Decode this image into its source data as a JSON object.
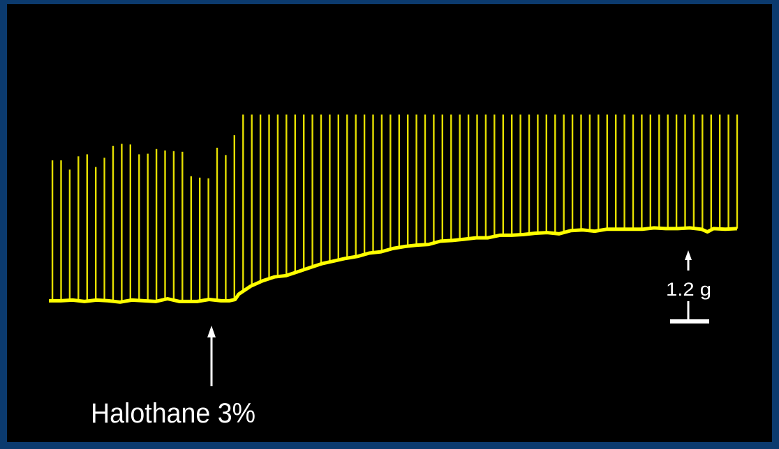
{
  "colors": {
    "border": "#0b3a6e",
    "background": "#000000",
    "trace": "#e6e000",
    "baseline": "#ffff00",
    "annotation": "#ffffff"
  },
  "annotations": {
    "drug_label": "Halothane 3%",
    "scale_label": "1.2 g"
  },
  "chart_data": {
    "type": "line",
    "title": "",
    "xlabel": "",
    "ylabel": "",
    "grid": false,
    "legend": "none",
    "drug_application_index": 16,
    "peaks": [
      0.0,
      0.0,
      -0.14,
      0.06,
      0.09,
      -0.1,
      0.04,
      0.22,
      0.25,
      0.24,
      0.09,
      0.1,
      0.17,
      0.15,
      0.14,
      0.13,
      -0.24,
      -0.26,
      -0.27,
      0.19,
      0.08,
      0.38,
      0.69,
      0.69,
      0.69,
      0.69,
      0.69,
      0.69,
      0.69,
      0.69,
      0.69,
      0.69,
      0.69,
      0.69,
      0.69,
      0.69,
      0.69,
      0.69,
      0.69,
      0.69,
      0.69,
      0.69,
      0.69,
      0.69,
      0.69,
      0.69,
      0.69,
      0.69,
      0.69,
      0.69,
      0.69,
      0.69,
      0.69,
      0.69,
      0.69,
      0.69,
      0.69,
      0.69,
      0.69,
      0.69,
      0.69,
      0.69,
      0.69,
      0.69,
      0.69,
      0.69,
      0.69,
      0.69,
      0.69,
      0.69,
      0.69,
      0.69,
      0.69,
      0.69,
      0.69,
      0.69,
      0.69,
      0.69,
      0.69,
      0.69
    ],
    "baseline": [
      [
        0,
        -2.12
      ],
      [
        0.1,
        -2.12
      ],
      [
        0.2,
        -2.11
      ],
      [
        0.3,
        -2.13
      ],
      [
        0.4,
        -2.11
      ],
      [
        0.5,
        -2.12
      ],
      [
        0.6,
        -2.14
      ],
      [
        0.7,
        -2.11
      ],
      [
        0.8,
        -2.12
      ],
      [
        0.9,
        -2.13
      ],
      [
        1.0,
        -2.09
      ],
      [
        1.1,
        -2.13
      ],
      [
        1.25,
        -2.13
      ],
      [
        1.35,
        -2.1
      ],
      [
        1.45,
        -2.12
      ],
      [
        1.52,
        -2.12
      ],
      [
        1.57,
        -2.1
      ],
      [
        1.6,
        -2.02
      ],
      [
        1.7,
        -1.9
      ],
      [
        1.8,
        -1.82
      ],
      [
        1.9,
        -1.76
      ],
      [
        2.0,
        -1.74
      ],
      [
        2.1,
        -1.68
      ],
      [
        2.2,
        -1.62
      ],
      [
        2.3,
        -1.56
      ],
      [
        2.4,
        -1.52
      ],
      [
        2.5,
        -1.48
      ],
      [
        2.6,
        -1.45
      ],
      [
        2.7,
        -1.4
      ],
      [
        2.8,
        -1.38
      ],
      [
        2.9,
        -1.33
      ],
      [
        3.0,
        -1.3
      ],
      [
        3.1,
        -1.28
      ],
      [
        3.2,
        -1.27
      ],
      [
        3.3,
        -1.22
      ],
      [
        3.4,
        -1.21
      ],
      [
        3.5,
        -1.19
      ],
      [
        3.6,
        -1.17
      ],
      [
        3.7,
        -1.17
      ],
      [
        3.8,
        -1.13
      ],
      [
        3.9,
        -1.13
      ],
      [
        4.0,
        -1.12
      ],
      [
        4.1,
        -1.1
      ],
      [
        4.2,
        -1.09
      ],
      [
        4.3,
        -1.11
      ],
      [
        4.4,
        -1.06
      ],
      [
        4.5,
        -1.05
      ],
      [
        4.6,
        -1.07
      ],
      [
        4.7,
        -1.04
      ],
      [
        4.8,
        -1.04
      ],
      [
        4.9,
        -1.04
      ],
      [
        5.0,
        -1.04
      ],
      [
        5.1,
        -1.02
      ],
      [
        5.2,
        -1.03
      ],
      [
        5.3,
        -1.03
      ],
      [
        5.4,
        -1.02
      ],
      [
        5.5,
        -1.04
      ],
      [
        5.55,
        -1.08
      ],
      [
        5.6,
        -1.03
      ],
      [
        5.7,
        -1.04
      ],
      [
        5.8,
        -1.03
      ]
    ],
    "scale_bar": {
      "label": "1.2 g",
      "value_g": 1.2
    }
  }
}
